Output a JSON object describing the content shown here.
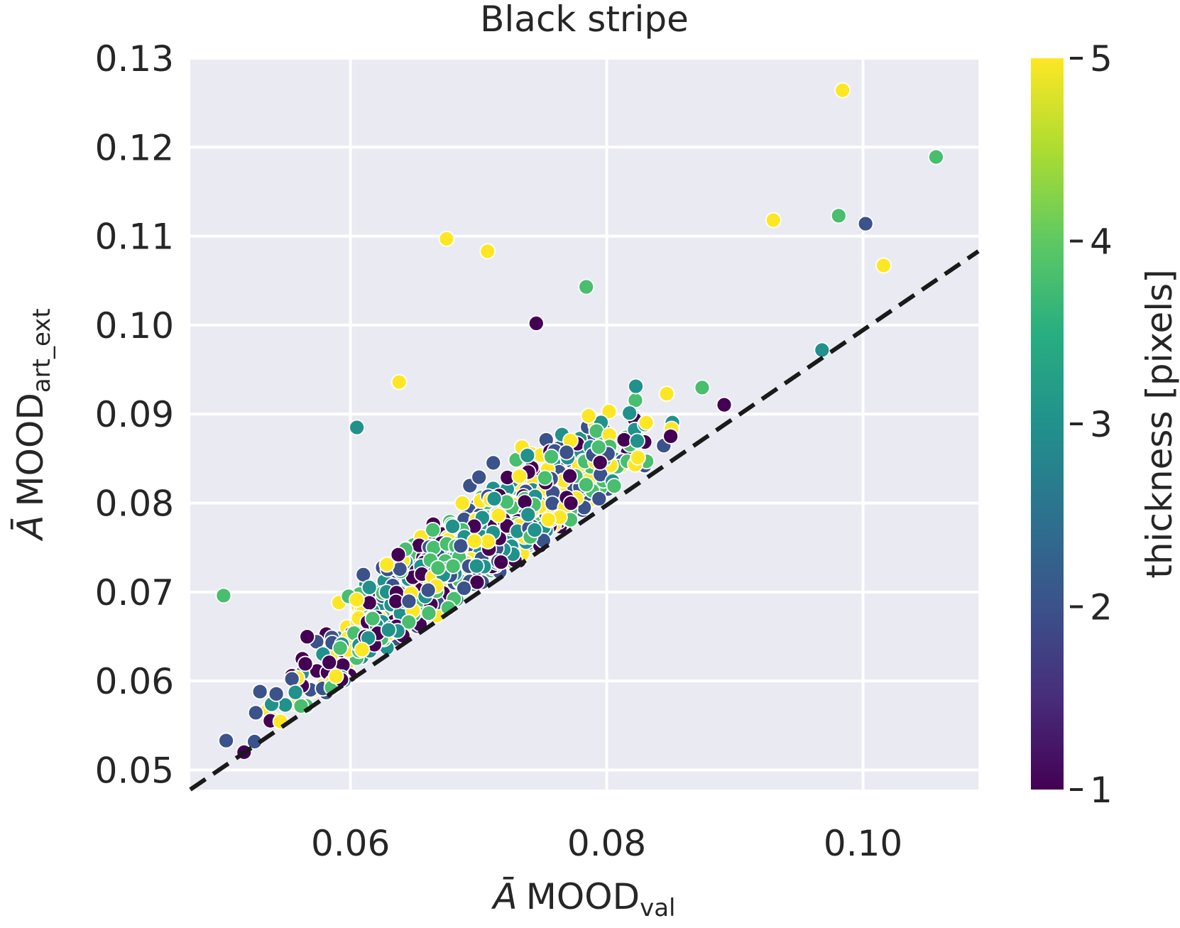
{
  "chart_data": {
    "type": "scatter",
    "title": "Black stripe",
    "xlabel": {
      "symbol": "Ā",
      "main": "MOOD",
      "sub": "val"
    },
    "ylabel": {
      "symbol": "Ā",
      "main": "MOOD",
      "sub": "art_ext"
    },
    "xlim": [
      0.0475,
      0.109
    ],
    "ylim": [
      0.0478,
      0.13
    ],
    "xticks": [
      0.06,
      0.08,
      0.1
    ],
    "xtick_labels": [
      "0.06",
      "0.08",
      "0.10"
    ],
    "yticks": [
      0.05,
      0.06,
      0.07,
      0.08,
      0.09,
      0.1,
      0.11,
      0.12,
      0.13
    ],
    "ytick_labels": [
      "0.05",
      "0.06",
      "0.07",
      "0.08",
      "0.09",
      "0.10",
      "0.11",
      "0.12",
      "0.13"
    ],
    "grid": true,
    "reference_line": {
      "style": "dashed",
      "color": "#1a1a1a",
      "x": [
        0.0475,
        0.109
      ],
      "y": [
        0.0478,
        0.1083
      ]
    },
    "colorbar": {
      "label": "thickness [pixels]",
      "range": [
        1,
        5
      ],
      "ticks": [
        1,
        2,
        3,
        4,
        5
      ],
      "tick_labels": [
        "1",
        "2",
        "3",
        "4",
        "5"
      ],
      "colormap": "viridis"
    },
    "n_points": 1200,
    "notable_points": [
      {
        "x": 0.0984,
        "y": 0.1264,
        "c": 5.0
      },
      {
        "x": 0.1057,
        "y": 0.1189,
        "c": 3.8
      },
      {
        "x": 0.0675,
        "y": 0.1097,
        "c": 5.0
      },
      {
        "x": 0.0707,
        "y": 0.1083,
        "c": 5.0
      },
      {
        "x": 0.093,
        "y": 0.1118,
        "c": 5.0
      },
      {
        "x": 0.0981,
        "y": 0.1123,
        "c": 3.8
      },
      {
        "x": 0.1002,
        "y": 0.1114,
        "c": 2.0
      },
      {
        "x": 0.0745,
        "y": 0.1002,
        "c": 1.0
      },
      {
        "x": 0.0784,
        "y": 0.1043,
        "c": 3.8
      },
      {
        "x": 0.0638,
        "y": 0.0936,
        "c": 5.0
      },
      {
        "x": 0.0501,
        "y": 0.0696,
        "c": 3.8
      },
      {
        "x": 0.0503,
        "y": 0.0533,
        "c": 2.0
      },
      {
        "x": 0.0517,
        "y": 0.052,
        "c": 1.0
      },
      {
        "x": 0.0605,
        "y": 0.0885,
        "c": 3.0
      },
      {
        "x": 0.0968,
        "y": 0.0972,
        "c": 3.0
      },
      {
        "x": 0.1016,
        "y": 0.1067,
        "c": 5.0
      }
    ]
  }
}
